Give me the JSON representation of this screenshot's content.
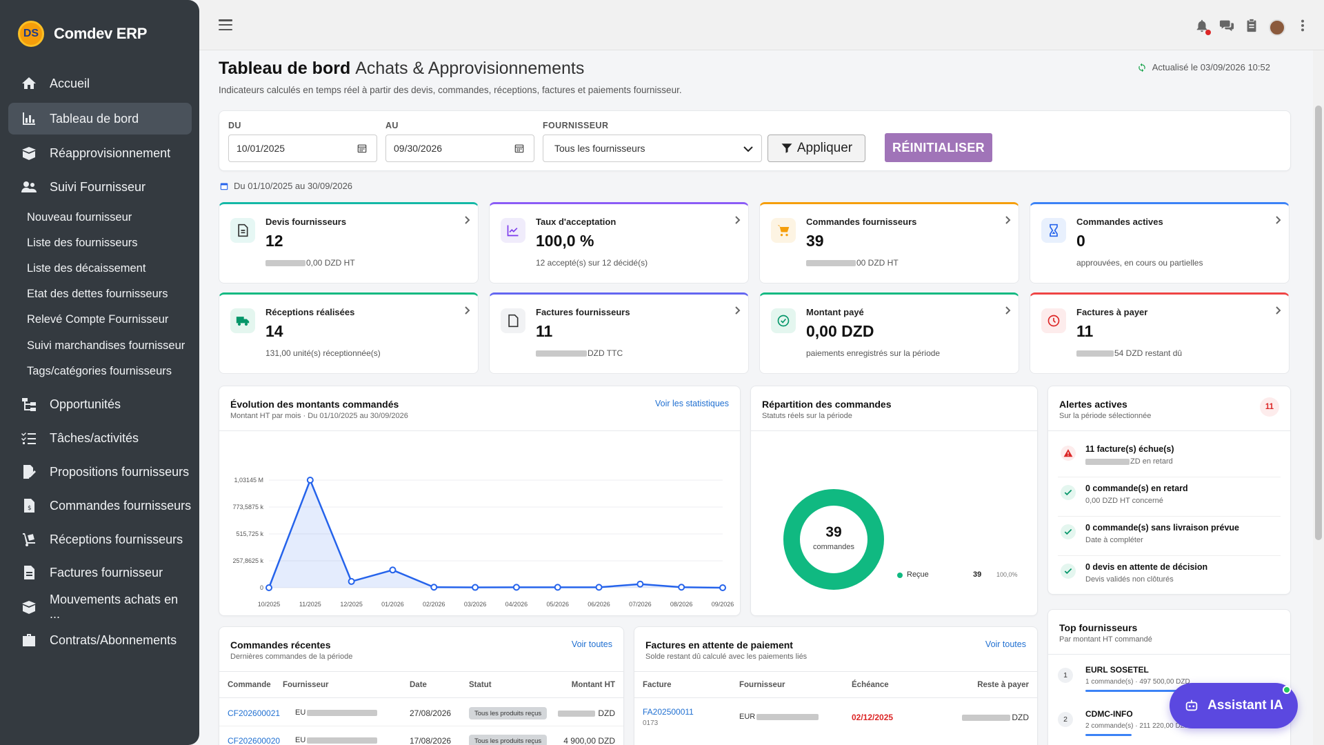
{
  "brand": {
    "logo_text": "DS",
    "name": "Comdev ERP"
  },
  "sidebar": {
    "items": [
      {
        "label": "Accueil",
        "icon": "home-icon"
      },
      {
        "label": "Tableau de bord",
        "icon": "chart-bar-icon",
        "active": true
      },
      {
        "label": "Réapprovisionnement",
        "icon": "box-open-icon"
      },
      {
        "label": "Suivi Fournisseur",
        "icon": "users-icon"
      },
      {
        "label": "Opportunités",
        "icon": "sitemap-icon"
      },
      {
        "label": "Tâches/activités",
        "icon": "tasks-icon"
      },
      {
        "label": "Propositions fournisseurs",
        "icon": "file-signature-icon"
      },
      {
        "label": "Commandes fournisseurs",
        "icon": "file-invoice-dollar-icon"
      },
      {
        "label": "Réceptions fournisseurs",
        "icon": "dolly-icon"
      },
      {
        "label": "Factures fournisseur",
        "icon": "file-invoice-icon"
      },
      {
        "label": "Mouvements achats en ...",
        "icon": "box-icon"
      },
      {
        "label": "Contrats/Abonnements",
        "icon": "briefcase-icon"
      }
    ],
    "subitems": [
      "Nouveau fournisseur",
      "Liste des fournisseurs",
      "Liste des décaissement",
      "Etat des dettes fournisseurs",
      "Relevé Compte Fournisseur",
      "Suivi marchandises fournisseur",
      "Tags/catégories fournisseurs"
    ]
  },
  "header": {
    "title_bold": "Tableau de bord",
    "title_light": "Achats & Approvisionnements",
    "subtitle": "Indicateurs calculés en temps réel à partir des devis, commandes, réceptions, factures et paiements fournisseur.",
    "updated": "Actualisé le 03/09/2026 10:52"
  },
  "filters": {
    "du_label": "DU",
    "du_value": "10/01/2025",
    "au_label": "AU",
    "au_value": "09/30/2026",
    "fournisseur_label": "FOURNISSEUR",
    "fournisseur_value": "Tous les fournisseurs",
    "apply_label": "Appliquer",
    "reset_label": "RÉINITIALISER"
  },
  "period_text": "Du 01/10/2025 au 30/09/2026",
  "kpis": [
    {
      "label": "Devis fournisseurs",
      "value": "12",
      "sub": "0,00 DZD HT",
      "color": "#14b8a6",
      "icon": "file-text-icon",
      "icon_bg": "#e6f7f4",
      "icon_color": "#333"
    },
    {
      "label": "Taux d'acceptation",
      "value": "100,0 %",
      "sub": "12 accepté(s) sur 12 décidé(s)",
      "color": "#8b5cf6",
      "icon": "chart-line-icon",
      "icon_bg": "#f0ecfb",
      "icon_color": "#7c3aed"
    },
    {
      "label": "Commandes fournisseurs",
      "value": "39",
      "sub": "00 DZD HT",
      "color": "#f59e0b",
      "icon": "cart-icon",
      "icon_bg": "#fdf4e3",
      "icon_color": "#f59e0b"
    },
    {
      "label": "Commandes actives",
      "value": "0",
      "sub": "approuvées, en cours ou partielles",
      "color": "#3b82f6",
      "icon": "hourglass-icon",
      "icon_bg": "#e8f0fd",
      "icon_color": "#2563eb"
    },
    {
      "label": "Réceptions réalisées",
      "value": "14",
      "sub": "131,00 unité(s) réceptionnée(s)",
      "color": "#10b981",
      "icon": "truck-icon",
      "icon_bg": "#e4f6ef",
      "icon_color": "#059669"
    },
    {
      "label": "Factures fournisseurs",
      "value": "11",
      "sub": "DZD TTC",
      "color": "#6366f1",
      "icon": "file-icon",
      "icon_bg": "#f1f2f4",
      "icon_color": "#333"
    },
    {
      "label": "Montant payé",
      "value": "0,00 DZD",
      "sub": "paiements enregistrés sur la période",
      "color": "#10b981",
      "icon": "check-circle-icon",
      "icon_bg": "#e4f6ef",
      "icon_color": "#059669"
    },
    {
      "label": "Factures à payer",
      "value": "11",
      "sub": "54 DZD restant dû",
      "color": "#ef4444",
      "icon": "clock-icon",
      "icon_bg": "#fdecec",
      "icon_color": "#dc2626"
    }
  ],
  "evolution": {
    "title": "Évolution des montants commandés",
    "subtitle": "Montant HT par mois · Du 01/10/2025 au 30/09/2026",
    "link": "Voir les statistiques"
  },
  "chart_data": {
    "type": "line",
    "categories": [
      "10/2025",
      "11/2025",
      "12/2025",
      "01/2026",
      "02/2026",
      "03/2026",
      "04/2026",
      "05/2026",
      "06/2026",
      "07/2026",
      "08/2026",
      "09/2026"
    ],
    "values": [
      0,
      1031450,
      60000,
      170000,
      5000,
      3000,
      4000,
      4000,
      4000,
      35000,
      5000,
      0
    ],
    "yticks": [
      0,
      257862.5,
      515725,
      773587.5,
      1031450
    ],
    "ytick_labels": [
      "0",
      "257,8625 k",
      "515,725 k",
      "773,5875 k",
      "1,03145 M"
    ],
    "ylim": [
      0,
      1031450
    ],
    "color": "#2563eb",
    "grid": true
  },
  "repartition": {
    "title": "Répartition des commandes",
    "subtitle": "Statuts réels sur la période",
    "total": "39",
    "total_label": "commandes",
    "legend": [
      {
        "name": "Reçue",
        "count": "39",
        "pct": "100,0%",
        "color": "#10b981"
      }
    ]
  },
  "alerts": {
    "title": "Alertes actives",
    "subtitle": "Sur la période sélectionnée",
    "count": "11",
    "items": [
      {
        "title": "11 facture(s) échue(s)",
        "sub": "ZD en retard",
        "type": "warning"
      },
      {
        "title": "0 commande(s) en retard",
        "sub": "0,00 DZD HT concerné",
        "type": "ok"
      },
      {
        "title": "0 commande(s) sans livraison prévue",
        "sub": "Date à compléter",
        "type": "ok"
      },
      {
        "title": "0 devis en attente de décision",
        "sub": "Devis validés non clôturés",
        "type": "ok"
      }
    ]
  },
  "recent_orders": {
    "title": "Commandes récentes",
    "subtitle": "Dernières commandes de la période",
    "link": "Voir toutes",
    "columns": [
      "Commande",
      "Fournisseur",
      "Date",
      "Statut",
      "Montant HT"
    ],
    "rows": [
      {
        "ref": "CF202600021",
        "supplier": "EU",
        "date": "27/08/2026",
        "status": "Tous les produits reçus",
        "amount": "DZD"
      },
      {
        "ref": "CF202600020",
        "supplier": "EU",
        "date": "17/08/2026",
        "status": "Tous les produits reçus",
        "amount": "4 900,00 DZD"
      }
    ]
  },
  "pending_invoices": {
    "title": "Factures en attente de paiement",
    "subtitle": "Solde restant dû calculé avec les paiements liés",
    "link": "Voir toutes",
    "columns": [
      "Facture",
      "Fournisseur",
      "Échéance",
      "Reste à payer"
    ],
    "rows": [
      {
        "ref": "FA202500011",
        "ref_sub": "0173",
        "supplier": "EUR",
        "due": "02/12/2025",
        "rest": "DZD"
      }
    ]
  },
  "top_suppliers": {
    "title": "Top fournisseurs",
    "subtitle": "Par montant HT commandé",
    "items": [
      {
        "rank": "1",
        "name": "EURL SOSETEL",
        "sub": "1 commande(s) · 497 500,00 DZD",
        "share": 1.0
      },
      {
        "rank": "2",
        "name": "CDMC-INFO",
        "sub": "2 commande(s) · 211 220,00 DZD",
        "share": 0.42
      }
    ]
  },
  "assistant": {
    "label": "Assistant IA"
  }
}
